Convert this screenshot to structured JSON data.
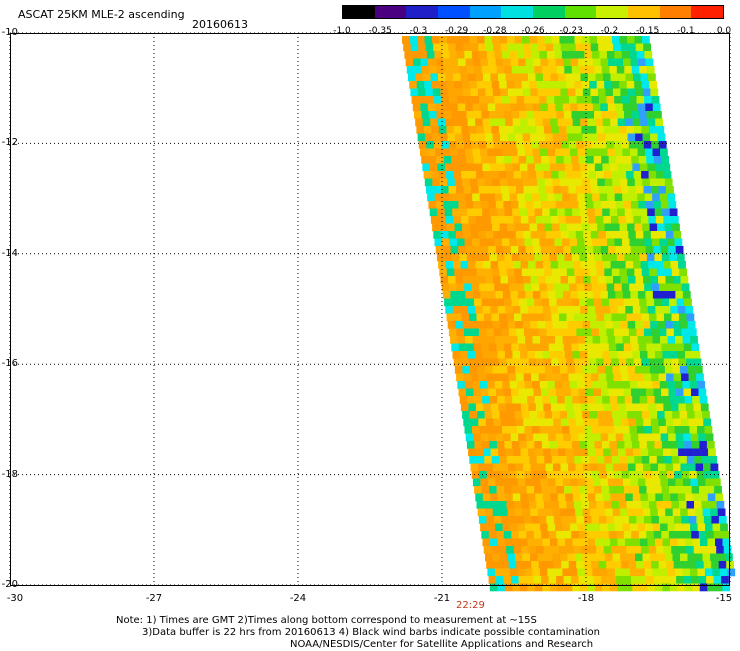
{
  "header": {
    "title": "ASCAT 25KM MLE-2 ascending",
    "date": "20160613"
  },
  "colorbar": {
    "labels": [
      "-1.0",
      "-0.35",
      "-0.3",
      "-0.29",
      "-0.28",
      "-0.26",
      "-0.23",
      "-0.2",
      "-0.15",
      "-0.1",
      "0.0"
    ],
    "colors": [
      "#000000",
      "#4a0080",
      "#2020c8",
      "#0050ff",
      "#00a0ff",
      "#00e0e0",
      "#00d060",
      "#60e000",
      "#c8f000",
      "#ffc000",
      "#ff8000",
      "#ff2000"
    ]
  },
  "axes": {
    "lat_labels": [
      "-10",
      "-12",
      "-14",
      "-16",
      "-18",
      "-20"
    ],
    "lon_labels": [
      "-30",
      "-27",
      "-24",
      "-21",
      "-18",
      "-15"
    ],
    "lat_range": [
      -20,
      -10
    ],
    "lon_range": [
      -30,
      -15
    ]
  },
  "pass_time": "22:29",
  "notes": {
    "line1": "Note: 1) Times are GMT 2)Times along bottom correspond to measurement at ~15S",
    "line2": "3)Data buffer is 22 hrs from 20160613 4) Black wind barbs indicate possible contamination",
    "line3": "NOAA/NESDIS/Center for Satellite Applications and Research"
  },
  "swath_colors": [
    "#ff9900",
    "#ffa500",
    "#ffb000",
    "#ffcc00",
    "#e8e800",
    "#c0f000",
    "#80e000",
    "#30d030",
    "#00d890",
    "#00e8e8",
    "#30a0ff",
    "#2020d0"
  ]
}
